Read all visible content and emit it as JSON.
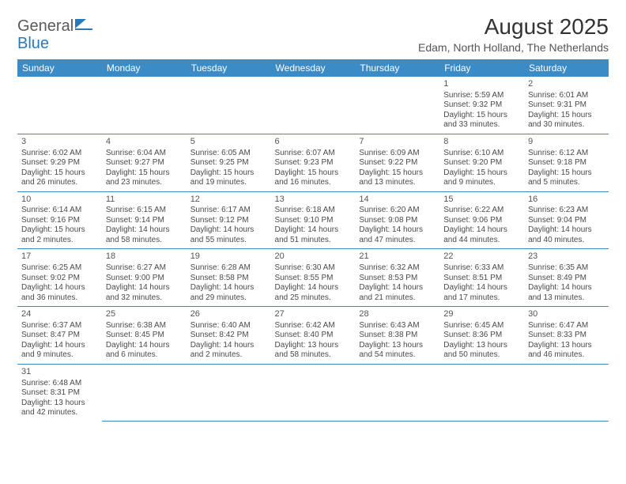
{
  "logo": {
    "part1": "General",
    "part2": "Blue"
  },
  "title": "August 2025",
  "location": "Edam, North Holland, The Netherlands",
  "colors": {
    "header_bg": "#3b8bc7",
    "header_fg": "#ffffff",
    "rule": "#3b8bc7",
    "logo_gray": "#5a5a5a",
    "logo_blue": "#2a7ab8",
    "text": "#4a4a4a"
  },
  "dayHeaders": [
    "Sunday",
    "Monday",
    "Tuesday",
    "Wednesday",
    "Thursday",
    "Friday",
    "Saturday"
  ],
  "weeks": [
    [
      null,
      null,
      null,
      null,
      null,
      {
        "n": "1",
        "sr": "5:59 AM",
        "ss": "9:32 PM",
        "dl": "15 hours and 33 minutes."
      },
      {
        "n": "2",
        "sr": "6:01 AM",
        "ss": "9:31 PM",
        "dl": "15 hours and 30 minutes."
      }
    ],
    [
      {
        "n": "3",
        "sr": "6:02 AM",
        "ss": "9:29 PM",
        "dl": "15 hours and 26 minutes."
      },
      {
        "n": "4",
        "sr": "6:04 AM",
        "ss": "9:27 PM",
        "dl": "15 hours and 23 minutes."
      },
      {
        "n": "5",
        "sr": "6:05 AM",
        "ss": "9:25 PM",
        "dl": "15 hours and 19 minutes."
      },
      {
        "n": "6",
        "sr": "6:07 AM",
        "ss": "9:23 PM",
        "dl": "15 hours and 16 minutes."
      },
      {
        "n": "7",
        "sr": "6:09 AM",
        "ss": "9:22 PM",
        "dl": "15 hours and 13 minutes."
      },
      {
        "n": "8",
        "sr": "6:10 AM",
        "ss": "9:20 PM",
        "dl": "15 hours and 9 minutes."
      },
      {
        "n": "9",
        "sr": "6:12 AM",
        "ss": "9:18 PM",
        "dl": "15 hours and 5 minutes."
      }
    ],
    [
      {
        "n": "10",
        "sr": "6:14 AM",
        "ss": "9:16 PM",
        "dl": "15 hours and 2 minutes."
      },
      {
        "n": "11",
        "sr": "6:15 AM",
        "ss": "9:14 PM",
        "dl": "14 hours and 58 minutes."
      },
      {
        "n": "12",
        "sr": "6:17 AM",
        "ss": "9:12 PM",
        "dl": "14 hours and 55 minutes."
      },
      {
        "n": "13",
        "sr": "6:18 AM",
        "ss": "9:10 PM",
        "dl": "14 hours and 51 minutes."
      },
      {
        "n": "14",
        "sr": "6:20 AM",
        "ss": "9:08 PM",
        "dl": "14 hours and 47 minutes."
      },
      {
        "n": "15",
        "sr": "6:22 AM",
        "ss": "9:06 PM",
        "dl": "14 hours and 44 minutes."
      },
      {
        "n": "16",
        "sr": "6:23 AM",
        "ss": "9:04 PM",
        "dl": "14 hours and 40 minutes."
      }
    ],
    [
      {
        "n": "17",
        "sr": "6:25 AM",
        "ss": "9:02 PM",
        "dl": "14 hours and 36 minutes."
      },
      {
        "n": "18",
        "sr": "6:27 AM",
        "ss": "9:00 PM",
        "dl": "14 hours and 32 minutes."
      },
      {
        "n": "19",
        "sr": "6:28 AM",
        "ss": "8:58 PM",
        "dl": "14 hours and 29 minutes."
      },
      {
        "n": "20",
        "sr": "6:30 AM",
        "ss": "8:55 PM",
        "dl": "14 hours and 25 minutes."
      },
      {
        "n": "21",
        "sr": "6:32 AM",
        "ss": "8:53 PM",
        "dl": "14 hours and 21 minutes."
      },
      {
        "n": "22",
        "sr": "6:33 AM",
        "ss": "8:51 PM",
        "dl": "14 hours and 17 minutes."
      },
      {
        "n": "23",
        "sr": "6:35 AM",
        "ss": "8:49 PM",
        "dl": "14 hours and 13 minutes."
      }
    ],
    [
      {
        "n": "24",
        "sr": "6:37 AM",
        "ss": "8:47 PM",
        "dl": "14 hours and 9 minutes."
      },
      {
        "n": "25",
        "sr": "6:38 AM",
        "ss": "8:45 PM",
        "dl": "14 hours and 6 minutes."
      },
      {
        "n": "26",
        "sr": "6:40 AM",
        "ss": "8:42 PM",
        "dl": "14 hours and 2 minutes."
      },
      {
        "n": "27",
        "sr": "6:42 AM",
        "ss": "8:40 PM",
        "dl": "13 hours and 58 minutes."
      },
      {
        "n": "28",
        "sr": "6:43 AM",
        "ss": "8:38 PM",
        "dl": "13 hours and 54 minutes."
      },
      {
        "n": "29",
        "sr": "6:45 AM",
        "ss": "8:36 PM",
        "dl": "13 hours and 50 minutes."
      },
      {
        "n": "30",
        "sr": "6:47 AM",
        "ss": "8:33 PM",
        "dl": "13 hours and 46 minutes."
      }
    ],
    [
      {
        "n": "31",
        "sr": "6:48 AM",
        "ss": "8:31 PM",
        "dl": "13 hours and 42 minutes."
      },
      null,
      null,
      null,
      null,
      null,
      null
    ]
  ],
  "labels": {
    "sunrise": "Sunrise: ",
    "sunset": "Sunset: ",
    "daylight": "Daylight: "
  }
}
